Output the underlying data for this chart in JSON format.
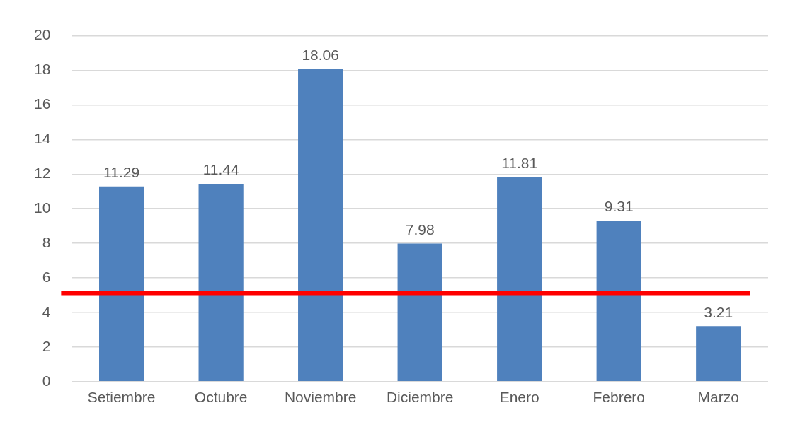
{
  "chart_data": {
    "type": "bar",
    "categories": [
      "Setiembre",
      "Octubre",
      "Noviembre",
      "Diciembre",
      "Enero",
      "Febrero",
      "Marzo"
    ],
    "values": [
      11.29,
      11.44,
      18.06,
      7.98,
      11.81,
      9.31,
      3.21
    ],
    "color": "#4f81bd",
    "data_labels": true,
    "ylim": [
      0,
      20
    ],
    "yticks": [
      0,
      2,
      4,
      6,
      8,
      10,
      12,
      14,
      16,
      18,
      20
    ],
    "grid": "y",
    "ref_lines": [
      {
        "axis": "y",
        "value": 5.1,
        "color": "#ff0000"
      }
    ]
  }
}
